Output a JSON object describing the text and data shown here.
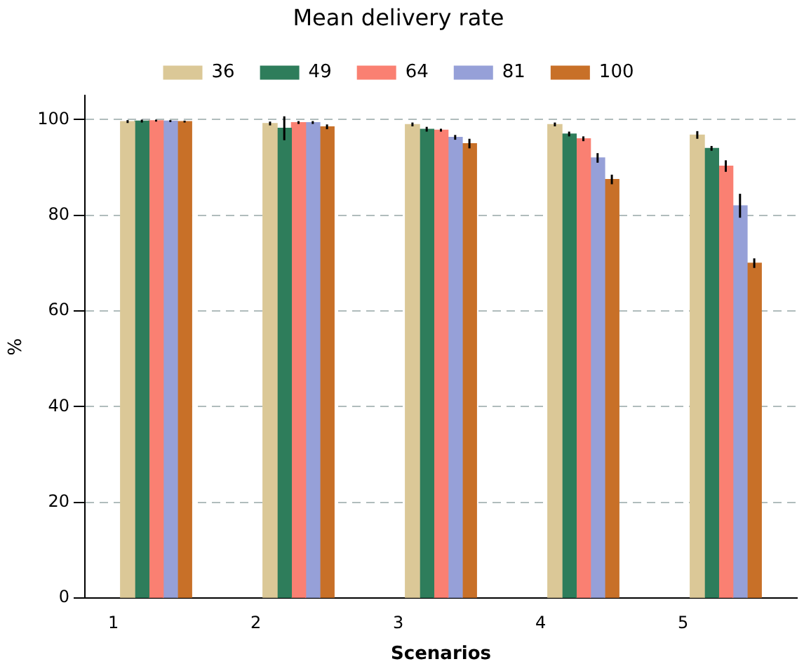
{
  "chart_data": {
    "type": "bar",
    "title": "Mean delivery rate",
    "xlabel": "Scenarios",
    "ylabel": "%",
    "xlim": [
      0.8,
      5.8
    ],
    "xticks": [
      1,
      2,
      3,
      4,
      5
    ],
    "ylim": [
      0,
      105
    ],
    "yticks": [
      0,
      20,
      40,
      60,
      80,
      100
    ],
    "grid": "y",
    "legend": "top",
    "series": [
      {
        "name": "36",
        "color": "#dbc897",
        "x": [
          1.1,
          2.1,
          3.1,
          4.1,
          5.1
        ],
        "values": [
          99.6,
          99.2,
          99,
          99,
          96.8
        ],
        "errors": [
          0.3,
          0.4,
          0.4,
          0.4,
          0.8
        ]
      },
      {
        "name": "49",
        "color": "#2e7d5b",
        "x": [
          1.2,
          2.2,
          3.2,
          4.2,
          5.2
        ],
        "values": [
          99.7,
          98.2,
          98,
          97,
          94
        ],
        "errors": [
          0.3,
          2.5,
          0.5,
          0.5,
          0.5
        ]
      },
      {
        "name": "64",
        "color": "#fa8072",
        "x": [
          1.3,
          2.3,
          3.3,
          4.3,
          5.3
        ],
        "values": [
          99.8,
          99.4,
          97.8,
          96,
          90.3
        ],
        "errors": [
          0.2,
          0.3,
          0.3,
          0.5,
          1.2
        ]
      },
      {
        "name": "81",
        "color": "#96a0d8",
        "x": [
          1.4,
          2.4,
          3.4,
          4.4,
          5.4
        ],
        "values": [
          99.7,
          99.4,
          96.3,
          92,
          82
        ],
        "errors": [
          0.2,
          0.3,
          0.5,
          1,
          2.5
        ]
      },
      {
        "name": "100",
        "color": "#c87028",
        "x": [
          1.5,
          2.5,
          3.5,
          4.5,
          5.5
        ],
        "values": [
          99.6,
          98.5,
          95,
          87.5,
          70
        ],
        "errors": [
          0.2,
          0.5,
          1,
          1,
          1
        ]
      }
    ]
  }
}
